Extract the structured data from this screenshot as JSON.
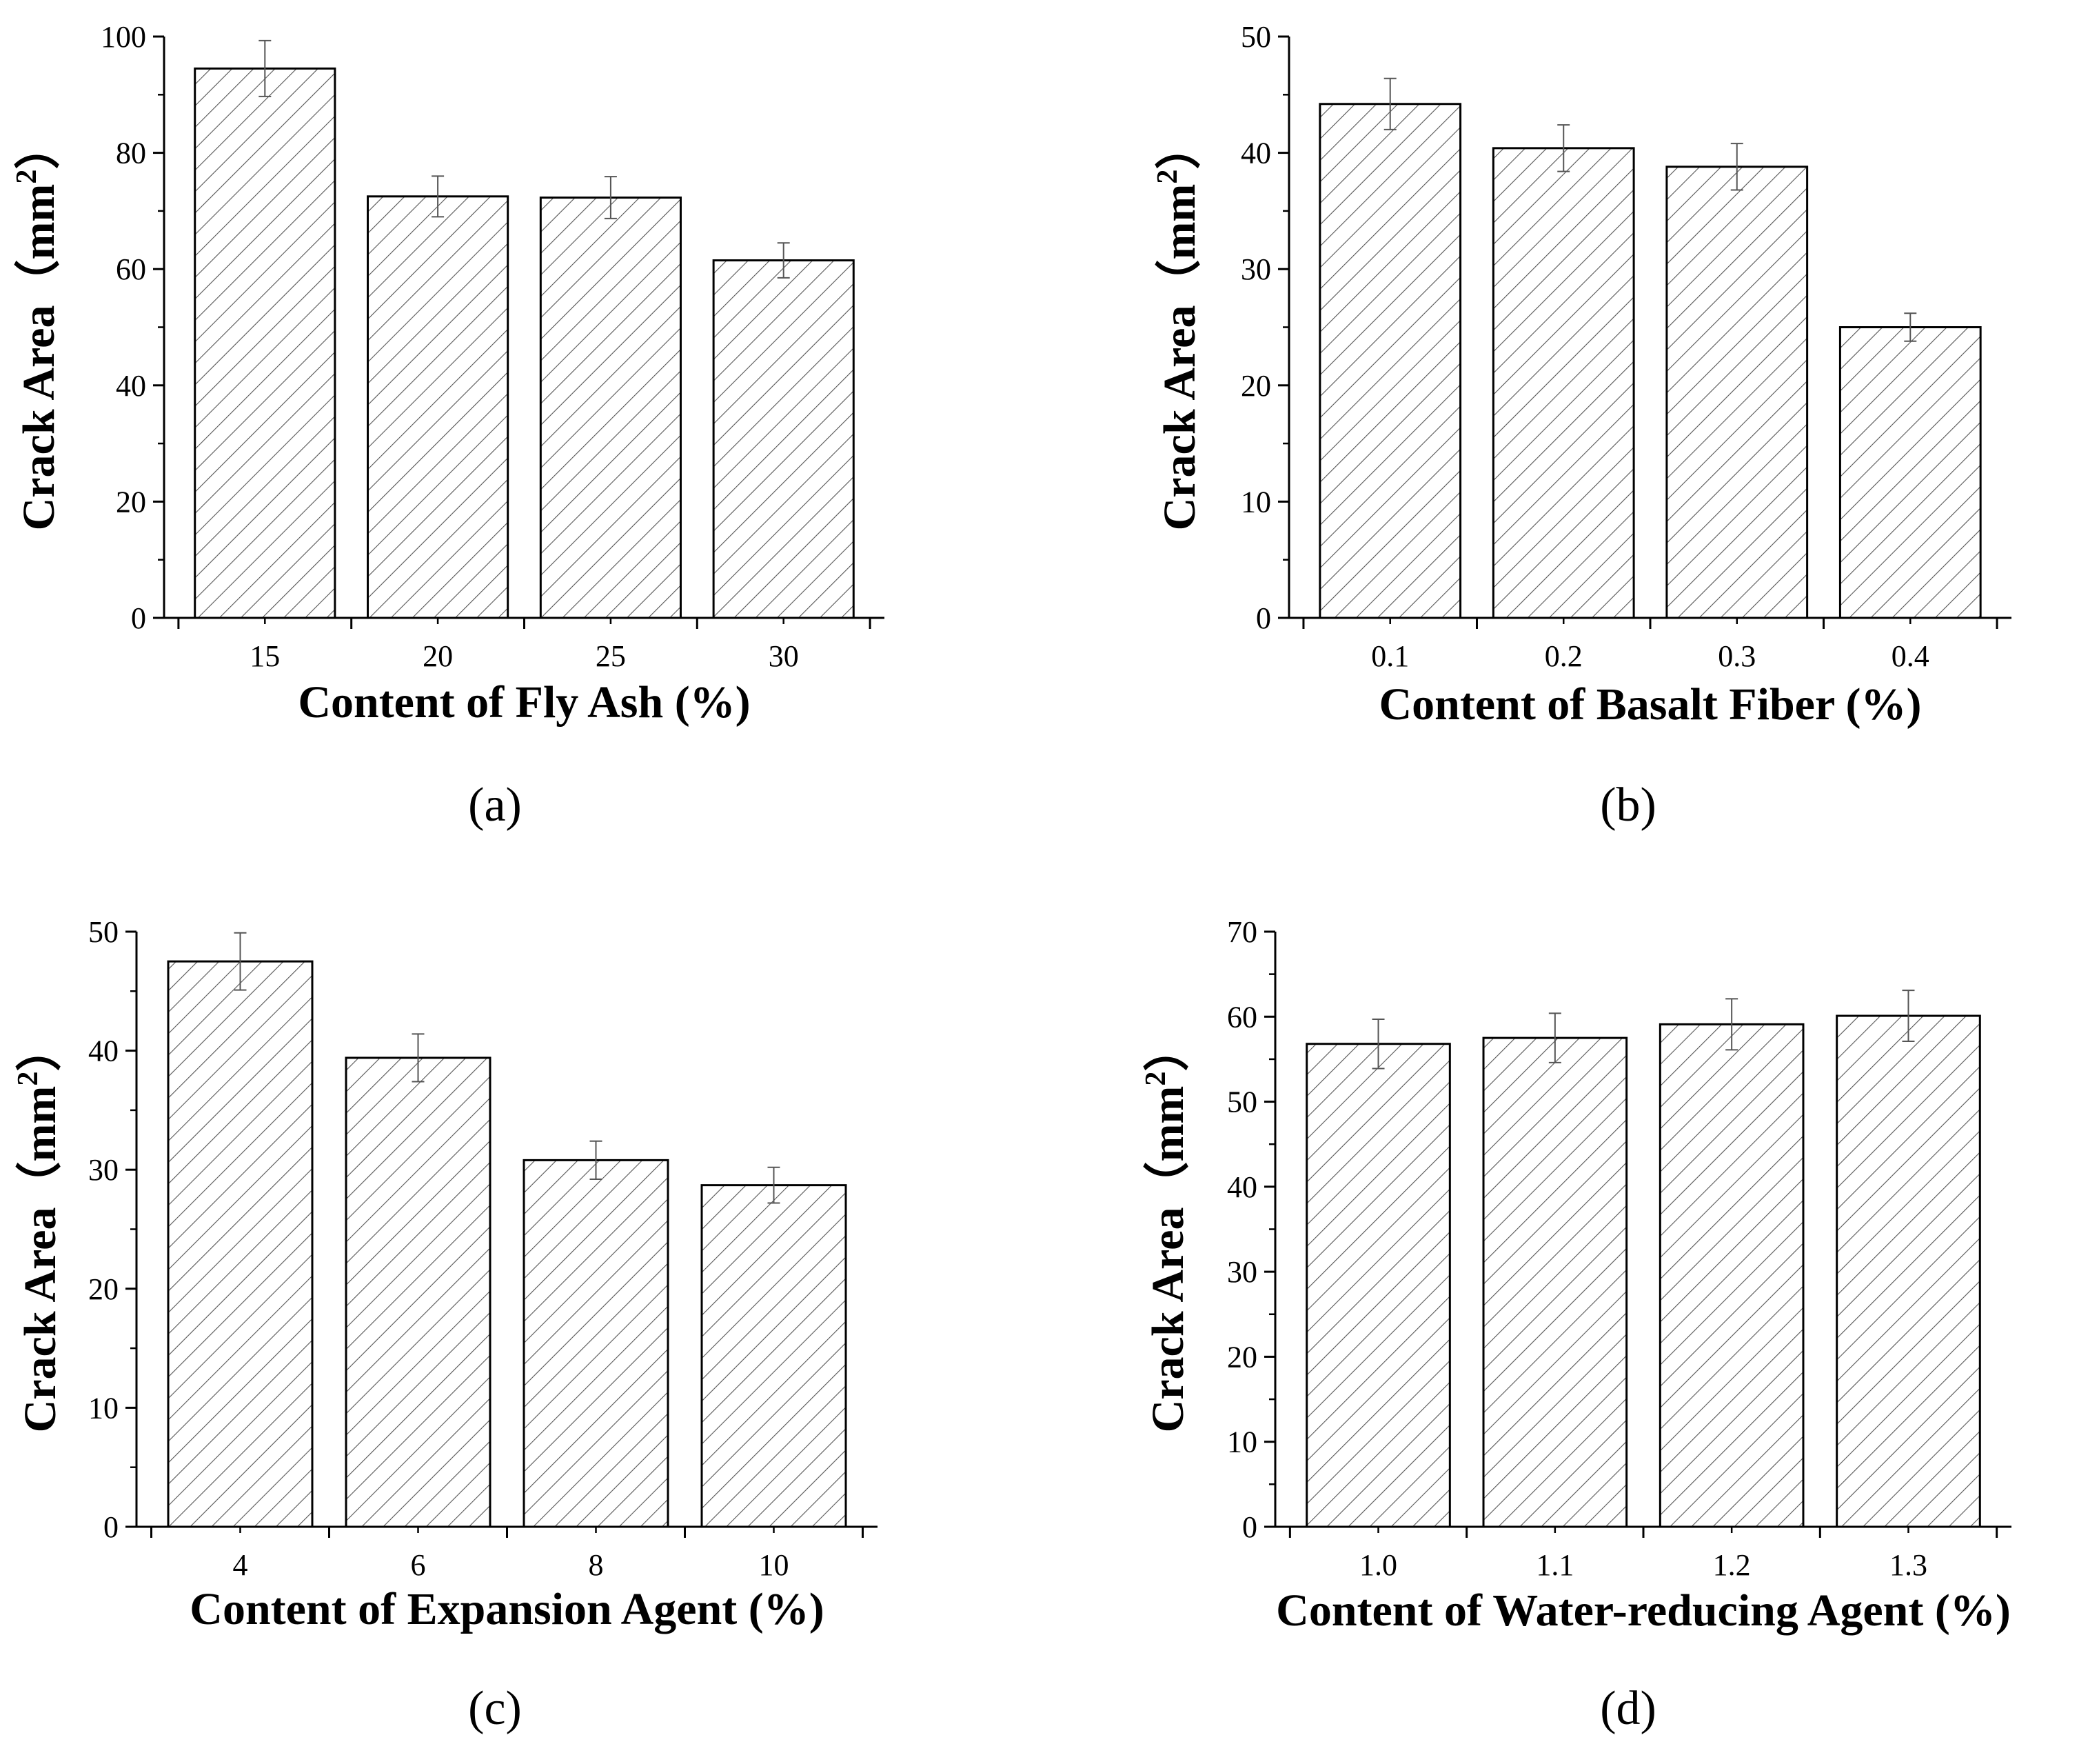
{
  "chart_data": [
    {
      "type": "bar",
      "panel_label": "(a)",
      "categories": [
        "15",
        "20",
        "25",
        "30"
      ],
      "values": [
        94.5,
        72.5,
        72.3,
        61.5
      ],
      "errors": [
        4.8,
        3.5,
        3.6,
        3.0
      ],
      "xlabel": "Content of Fly Ash (%)",
      "ylabel_text": "Crack Area",
      "ylabel_unit": "（mm",
      "ylabel_sup": "2",
      "ylabel_close": "）",
      "ylim": [
        0,
        100
      ],
      "yticks": [
        "0",
        "20",
        "40",
        "60",
        "80",
        "100"
      ],
      "fill": "#ffffff",
      "hatch": "diagonal",
      "grid": false
    },
    {
      "type": "bar",
      "panel_label": "(b)",
      "categories": [
        "0.1",
        "0.2",
        "0.3",
        "0.4"
      ],
      "values": [
        44.2,
        40.4,
        38.8,
        25.0
      ],
      "errors": [
        2.2,
        2.0,
        2.0,
        1.2
      ],
      "xlabel": "Content of Basalt Fiber (%)",
      "ylabel_text": "Crack Area",
      "ylabel_unit": "（mm",
      "ylabel_sup": "2",
      "ylabel_close": "）",
      "ylim": [
        0,
        50
      ],
      "yticks": [
        "0",
        "10",
        "20",
        "30",
        "40",
        "50"
      ],
      "fill": "#ffffff",
      "hatch": "diagonal",
      "grid": false
    },
    {
      "type": "bar",
      "panel_label": "(c)",
      "categories": [
        "4",
        "6",
        "8",
        "10"
      ],
      "values": [
        47.5,
        39.4,
        30.8,
        28.7
      ],
      "errors": [
        2.4,
        2.0,
        1.6,
        1.5
      ],
      "xlabel": "Content of Expansion Agent (%)",
      "ylabel_text": "Crack Area",
      "ylabel_unit": "（mm",
      "ylabel_sup": "2",
      "ylabel_close": "）",
      "ylim": [
        0,
        50
      ],
      "yticks": [
        "0",
        "10",
        "20",
        "30",
        "40",
        "50"
      ],
      "fill": "#ffffff",
      "hatch": "diagonal",
      "grid": false
    },
    {
      "type": "bar",
      "panel_label": "(d)",
      "categories": [
        "1.0",
        "1.1",
        "1.2",
        "1.3"
      ],
      "values": [
        56.8,
        57.5,
        59.1,
        60.1
      ],
      "errors": [
        2.9,
        2.9,
        3.0,
        3.0
      ],
      "xlabel": "Content of Water-reducing Agent (%)",
      "ylabel_text": "Crack Area",
      "ylabel_unit": "（mm",
      "ylabel_sup": "2",
      "ylabel_close": "）",
      "ylim": [
        0,
        70
      ],
      "yticks": [
        "0",
        "10",
        "20",
        "30",
        "40",
        "50",
        "60",
        "70"
      ],
      "fill": "#ffffff",
      "hatch": "diagonal",
      "grid": false
    }
  ]
}
